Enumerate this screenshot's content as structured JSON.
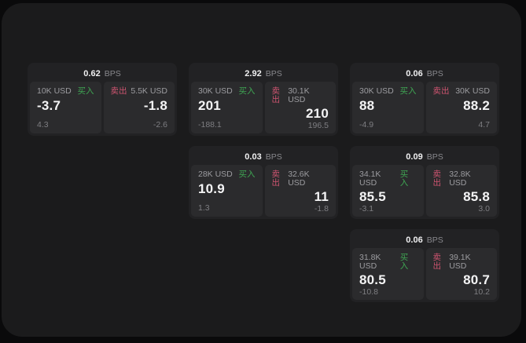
{
  "labels": {
    "bps": "BPS",
    "buy": "买入",
    "sell": "卖出"
  },
  "colors": {
    "buy": "#3fa653",
    "sell": "#ce5470",
    "panel_bg": "#1b1b1c",
    "card_bg": "#222224",
    "pane_bg": "#2b2b2d",
    "outer_bg": "#0a0a0b"
  },
  "cards": [
    {
      "bps": "0.62",
      "buy": {
        "amount": "10K USD",
        "value": "-3.7",
        "delta": "4.3"
      },
      "sell": {
        "amount": "5.5K USD",
        "value": "-1.8",
        "delta": "-2.6"
      }
    },
    {
      "bps": "2.92",
      "buy": {
        "amount": "30K USD",
        "value": "201",
        "delta": "-188.1"
      },
      "sell": {
        "amount": "30.1K USD",
        "value": "210",
        "delta": "196.5"
      }
    },
    {
      "bps": "0.06",
      "buy": {
        "amount": "30K USD",
        "value": "88",
        "delta": "-4.9"
      },
      "sell": {
        "amount": "30K USD",
        "value": "88.2",
        "delta": "4.7"
      }
    },
    {
      "bps": "0.03",
      "buy": {
        "amount": "28K USD",
        "value": "10.9",
        "delta": "1.3"
      },
      "sell": {
        "amount": "32.6K USD",
        "value": "11",
        "delta": "-1.8"
      }
    },
    {
      "bps": "0.09",
      "buy": {
        "amount": "34.1K USD",
        "value": "85.5",
        "delta": "-3.1"
      },
      "sell": {
        "amount": "32.8K USD",
        "value": "85.8",
        "delta": "3.0"
      }
    },
    {
      "bps": "0.06",
      "buy": {
        "amount": "31.8K USD",
        "value": "80.5",
        "delta": "-10.8"
      },
      "sell": {
        "amount": "39.1K USD",
        "value": "80.7",
        "delta": "10.2"
      }
    }
  ]
}
